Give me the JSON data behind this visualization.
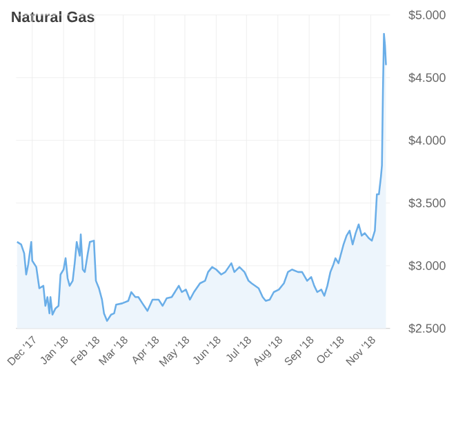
{
  "chart_data": {
    "type": "area",
    "title": "Natural Gas",
    "color": "#6aaee8",
    "x": [
      "2017-11-16",
      "2017-11-20",
      "2017-11-23",
      "2017-11-25",
      "2017-11-27",
      "2017-11-30",
      "2017-12-01",
      "2017-12-05",
      "2017-12-08",
      "2017-12-12",
      "2017-12-14",
      "2017-12-16",
      "2017-12-18",
      "2017-12-19",
      "2017-12-21",
      "2017-12-24",
      "2017-12-27",
      "2017-12-29",
      "2018-01-01",
      "2018-01-03",
      "2018-01-05",
      "2018-01-07",
      "2018-01-10",
      "2018-01-12",
      "2018-01-14",
      "2018-01-17",
      "2018-01-18",
      "2018-01-20",
      "2018-01-22",
      "2018-01-25",
      "2018-01-27",
      "2018-01-31",
      "2018-02-02",
      "2018-02-05",
      "2018-02-08",
      "2018-02-10",
      "2018-02-13",
      "2018-02-17",
      "2018-02-20",
      "2018-02-22",
      "2018-02-28",
      "2018-03-06",
      "2018-03-09",
      "2018-03-13",
      "2018-03-16",
      "2018-03-20",
      "2018-03-25",
      "2018-03-30",
      "2018-04-05",
      "2018-04-09",
      "2018-04-13",
      "2018-04-18",
      "2018-04-25",
      "2018-04-28",
      "2018-05-02",
      "2018-05-06",
      "2018-05-10",
      "2018-05-16",
      "2018-05-21",
      "2018-05-24",
      "2018-05-28",
      "2018-06-01",
      "2018-06-06",
      "2018-06-10",
      "2018-06-16",
      "2018-06-19",
      "2018-06-24",
      "2018-06-29",
      "2018-07-03",
      "2018-07-06",
      "2018-07-13",
      "2018-07-17",
      "2018-07-20",
      "2018-07-24",
      "2018-07-28",
      "2018-08-02",
      "2018-08-07",
      "2018-08-11",
      "2018-08-15",
      "2018-08-21",
      "2018-08-25",
      "2018-08-30",
      "2018-09-03",
      "2018-09-06",
      "2018-09-09",
      "2018-09-13",
      "2018-09-16",
      "2018-09-19",
      "2018-09-22",
      "2018-09-25",
      "2018-09-27",
      "2018-09-30",
      "2018-10-02",
      "2018-10-05",
      "2018-10-08",
      "2018-10-11",
      "2018-10-14",
      "2018-10-17",
      "2018-10-20",
      "2018-10-23",
      "2018-10-26",
      "2018-10-30",
      "2018-11-02",
      "2018-11-05",
      "2018-11-07",
      "2018-11-09",
      "2018-11-11",
      "2018-11-12",
      "2018-11-13",
      "2018-11-14",
      "2018-11-15",
      "2018-11-16"
    ],
    "values": [
      3.19,
      3.17,
      3.1,
      2.93,
      3.01,
      3.19,
      3.04,
      2.99,
      2.82,
      2.84,
      2.68,
      2.75,
      2.62,
      2.75,
      2.61,
      2.66,
      2.68,
      2.93,
      2.97,
      3.06,
      2.9,
      2.84,
      2.88,
      3.02,
      3.19,
      3.08,
      3.25,
      2.97,
      2.95,
      3.1,
      3.19,
      3.2,
      2.88,
      2.82,
      2.73,
      2.62,
      2.56,
      2.61,
      2.62,
      2.69,
      2.7,
      2.72,
      2.79,
      2.75,
      2.75,
      2.7,
      2.64,
      2.73,
      2.73,
      2.68,
      2.74,
      2.75,
      2.84,
      2.79,
      2.81,
      2.73,
      2.79,
      2.86,
      2.88,
      2.95,
      2.99,
      2.97,
      2.93,
      2.95,
      3.02,
      2.95,
      2.99,
      2.95,
      2.88,
      2.86,
      2.82,
      2.75,
      2.72,
      2.73,
      2.79,
      2.81,
      2.86,
      2.95,
      2.97,
      2.95,
      2.95,
      2.88,
      2.91,
      2.84,
      2.79,
      2.81,
      2.76,
      2.84,
      2.95,
      3.01,
      3.06,
      3.02,
      3.08,
      3.17,
      3.24,
      3.28,
      3.17,
      3.26,
      3.33,
      3.24,
      3.26,
      3.22,
      3.2,
      3.28,
      3.57,
      3.57,
      3.71,
      3.8,
      4.4,
      4.85,
      4.76,
      4.6
    ],
    "xlim": [
      "2017-11-15",
      "2018-11-20"
    ],
    "ylim": [
      2.5,
      5.0
    ],
    "xticks": [
      {
        "value": "2017-12-01",
        "label": "Dec '17"
      },
      {
        "value": "2018-01-01",
        "label": "Jan '18"
      },
      {
        "value": "2018-02-01",
        "label": "Feb '18"
      },
      {
        "value": "2018-03-01",
        "label": "Mar '18"
      },
      {
        "value": "2018-04-01",
        "label": "Apr '18"
      },
      {
        "value": "2018-05-01",
        "label": "May '18"
      },
      {
        "value": "2018-06-01",
        "label": "Jun '18"
      },
      {
        "value": "2018-07-01",
        "label": "Jul '18"
      },
      {
        "value": "2018-08-01",
        "label": "Aug '18"
      },
      {
        "value": "2018-09-01",
        "label": "Sep '18"
      },
      {
        "value": "2018-10-01",
        "label": "Oct '18"
      },
      {
        "value": "2018-11-01",
        "label": "Nov '18"
      }
    ],
    "yticks": [
      {
        "value": 2.5,
        "label": "$2.500"
      },
      {
        "value": 3.0,
        "label": "$3.000"
      },
      {
        "value": 3.5,
        "label": "$3.500"
      },
      {
        "value": 4.0,
        "label": "$4.000"
      },
      {
        "value": 4.5,
        "label": "$4.500"
      },
      {
        "value": 5.0,
        "label": "$5.000"
      }
    ],
    "grid": true,
    "marker": "none",
    "line_style": "solid"
  }
}
